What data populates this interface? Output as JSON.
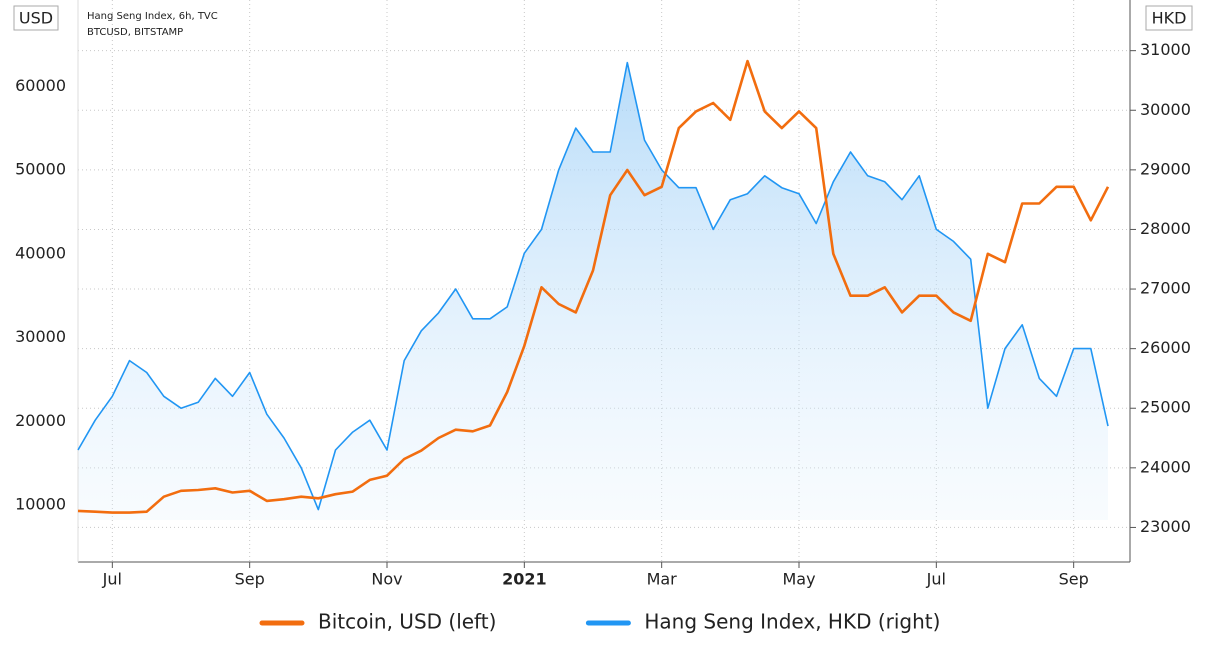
{
  "chart_data": {
    "type": "line",
    "notes": [
      "Hang Seng Index, 6h, TVC",
      "BTCUSD, BITSTAMP"
    ],
    "y_label": "USD",
    "y2_label": "HKD",
    "categories": [
      null,
      null,
      "Jul",
      null,
      null,
      null,
      null,
      null,
      null,
      null,
      "Sep",
      null,
      null,
      null,
      null,
      null,
      null,
      null,
      "Nov",
      null,
      null,
      null,
      null,
      null,
      null,
      null,
      "2021",
      null,
      null,
      null,
      null,
      null,
      null,
      null,
      "Mar",
      null,
      null,
      null,
      null,
      null,
      null,
      null,
      "May",
      null,
      null,
      null,
      null,
      null,
      null,
      null,
      "Jul",
      null,
      null,
      null,
      null,
      null,
      null,
      null,
      "Sep",
      null,
      null
    ],
    "series": [
      {
        "name": "Bitcoin, USD (left)",
        "color": "#f26d0f",
        "axis": "y",
        "values": [
          9300,
          9200,
          9100,
          9100,
          9200,
          11000,
          11700,
          11800,
          12000,
          11500,
          11700,
          10500,
          10700,
          11000,
          10800,
          11300,
          11600,
          13000,
          13500,
          15500,
          16500,
          18000,
          19000,
          18800,
          19500,
          23500,
          29000,
          36000,
          34000,
          33000,
          38000,
          47000,
          50000,
          47000,
          48000,
          55000,
          57000,
          58000,
          56000,
          63000,
          57000,
          55000,
          57000,
          55000,
          40000,
          35000,
          35000,
          36000,
          33000,
          35000,
          35000,
          33000,
          32000,
          40000,
          39000,
          46000,
          46000,
          48000,
          48000,
          44000,
          48000
        ]
      },
      {
        "name": "Hang Seng Index, HKD (right)",
        "color": "#2196f3",
        "axis": "y2",
        "area": true,
        "values": [
          24300,
          24800,
          25200,
          25800,
          25600,
          25200,
          25000,
          25100,
          25500,
          25200,
          25600,
          24900,
          24500,
          24000,
          23300,
          24300,
          24600,
          24800,
          24300,
          25800,
          26300,
          26600,
          27000,
          26500,
          26500,
          26700,
          27600,
          28000,
          29000,
          29700,
          29300,
          29300,
          30800,
          29500,
          29000,
          28700,
          28700,
          28000,
          28500,
          28600,
          28900,
          28700,
          28600,
          28100,
          28800,
          29300,
          28900,
          28800,
          28500,
          28900,
          28000,
          27800,
          27500,
          25000,
          26000,
          26400,
          25500,
          25200,
          26000,
          26000,
          24700
        ]
      }
    ],
    "ylim": [
      3200,
      70300
    ],
    "yticks": [
      10000,
      20000,
      30000,
      40000,
      50000,
      60000
    ],
    "y2lim": [
      22420,
      31850
    ],
    "y2ticks": [
      23000,
      24000,
      25000,
      26000,
      27000,
      28000,
      29000,
      30000,
      31000
    ],
    "grid": true
  }
}
